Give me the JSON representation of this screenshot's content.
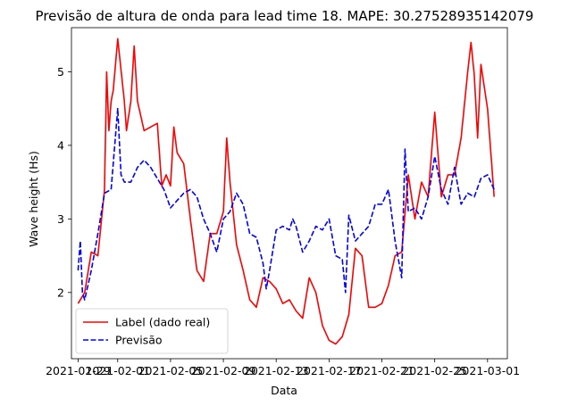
{
  "chart_data": {
    "type": "line",
    "title": "Previsão de altura de onda para lead time 18. MAPE: 30.27528935142079",
    "xlabel": "Data",
    "ylabel": "Wave height (Hs)",
    "xlim": [
      "2021-01-28T12:00",
      "2021-03-02T12:00"
    ],
    "ylim": [
      1.1,
      5.6
    ],
    "x_ticks": [
      "2021-01-29",
      "2021-02-01",
      "2021-02-05",
      "2021-02-09",
      "2021-02-13",
      "2021-02-17",
      "2021-02-21",
      "2021-02-25",
      "2021-03-01"
    ],
    "y_ticks": [
      2,
      3,
      4,
      5
    ],
    "grid": false,
    "legend": "bottom-left",
    "series": [
      {
        "name": "Label (dado real)",
        "color": "#ff0000",
        "style": "solid",
        "points": [
          [
            "2021-01-29T00:00",
            1.85
          ],
          [
            "2021-01-29T12:00",
            2.0
          ],
          [
            "2021-01-30T00:00",
            2.55
          ],
          [
            "2021-01-30T12:00",
            2.5
          ],
          [
            "2021-01-31T00:00",
            3.4
          ],
          [
            "2021-01-31T04:00",
            5.0
          ],
          [
            "2021-01-31T08:00",
            4.2
          ],
          [
            "2021-01-31T12:00",
            4.6
          ],
          [
            "2021-01-31T16:00",
            4.75
          ],
          [
            "2021-02-01T00:00",
            5.45
          ],
          [
            "2021-02-01T12:00",
            4.6
          ],
          [
            "2021-02-01T16:00",
            4.2
          ],
          [
            "2021-02-02T00:00",
            4.6
          ],
          [
            "2021-02-02T06:00",
            5.35
          ],
          [
            "2021-02-02T12:00",
            4.6
          ],
          [
            "2021-02-03T00:00",
            4.2
          ],
          [
            "2021-02-03T12:00",
            4.25
          ],
          [
            "2021-02-04T00:00",
            4.3
          ],
          [
            "2021-02-04T08:00",
            3.45
          ],
          [
            "2021-02-04T16:00",
            3.6
          ],
          [
            "2021-02-05T00:00",
            3.45
          ],
          [
            "2021-02-05T06:00",
            4.25
          ],
          [
            "2021-02-05T12:00",
            3.9
          ],
          [
            "2021-02-06T00:00",
            3.75
          ],
          [
            "2021-02-06T12:00",
            3.0
          ],
          [
            "2021-02-07T00:00",
            2.3
          ],
          [
            "2021-02-07T12:00",
            2.15
          ],
          [
            "2021-02-08T00:00",
            2.8
          ],
          [
            "2021-02-08T12:00",
            2.8
          ],
          [
            "2021-02-09T00:00",
            3.1
          ],
          [
            "2021-02-09T06:00",
            4.1
          ],
          [
            "2021-02-09T12:00",
            3.5
          ],
          [
            "2021-02-10T00:00",
            2.65
          ],
          [
            "2021-02-10T12:00",
            2.3
          ],
          [
            "2021-02-11T00:00",
            1.9
          ],
          [
            "2021-02-11T12:00",
            1.8
          ],
          [
            "2021-02-12T00:00",
            2.2
          ],
          [
            "2021-02-12T12:00",
            2.15
          ],
          [
            "2021-02-13T00:00",
            2.05
          ],
          [
            "2021-02-13T12:00",
            1.85
          ],
          [
            "2021-02-14T00:00",
            1.9
          ],
          [
            "2021-02-14T12:00",
            1.75
          ],
          [
            "2021-02-15T00:00",
            1.65
          ],
          [
            "2021-02-15T12:00",
            2.2
          ],
          [
            "2021-02-16T00:00",
            2.0
          ],
          [
            "2021-02-16T12:00",
            1.55
          ],
          [
            "2021-02-17T00:00",
            1.35
          ],
          [
            "2021-02-17T12:00",
            1.3
          ],
          [
            "2021-02-18T00:00",
            1.4
          ],
          [
            "2021-02-18T12:00",
            1.7
          ],
          [
            "2021-02-19T00:00",
            2.6
          ],
          [
            "2021-02-19T12:00",
            2.5
          ],
          [
            "2021-02-20T00:00",
            1.8
          ],
          [
            "2021-02-20T12:00",
            1.8
          ],
          [
            "2021-02-21T00:00",
            1.85
          ],
          [
            "2021-02-21T12:00",
            2.1
          ],
          [
            "2021-02-22T00:00",
            2.5
          ],
          [
            "2021-02-22T12:00",
            2.55
          ],
          [
            "2021-02-23T00:00",
            3.6
          ],
          [
            "2021-02-23T12:00",
            3.0
          ],
          [
            "2021-02-24T00:00",
            3.5
          ],
          [
            "2021-02-24T12:00",
            3.3
          ],
          [
            "2021-02-25T00:00",
            4.45
          ],
          [
            "2021-02-25T12:00",
            3.3
          ],
          [
            "2021-02-26T00:00",
            3.6
          ],
          [
            "2021-02-26T12:00",
            3.6
          ],
          [
            "2021-02-27T00:00",
            4.1
          ],
          [
            "2021-02-27T12:00",
            5.0
          ],
          [
            "2021-02-27T18:00",
            5.4
          ],
          [
            "2021-02-28T00:00",
            4.95
          ],
          [
            "2021-02-28T06:00",
            4.1
          ],
          [
            "2021-02-28T12:00",
            5.1
          ],
          [
            "2021-03-01T00:00",
            4.5
          ],
          [
            "2021-03-01T12:00",
            3.3
          ]
        ]
      },
      {
        "name": "Previsão",
        "color": "#0000ff",
        "style": "dashed",
        "points": [
          [
            "2021-01-29T00:00",
            2.3
          ],
          [
            "2021-01-29T04:00",
            2.7
          ],
          [
            "2021-01-29T08:00",
            2.0
          ],
          [
            "2021-01-29T12:00",
            1.9
          ],
          [
            "2021-01-30T00:00",
            2.3
          ],
          [
            "2021-01-30T12:00",
            2.8
          ],
          [
            "2021-01-31T00:00",
            3.35
          ],
          [
            "2021-01-31T12:00",
            3.4
          ],
          [
            "2021-02-01T00:00",
            4.5
          ],
          [
            "2021-02-01T06:00",
            3.6
          ],
          [
            "2021-02-01T12:00",
            3.5
          ],
          [
            "2021-02-02T00:00",
            3.5
          ],
          [
            "2021-02-02T12:00",
            3.7
          ],
          [
            "2021-02-03T00:00",
            3.8
          ],
          [
            "2021-02-03T12:00",
            3.7
          ],
          [
            "2021-02-04T00:00",
            3.55
          ],
          [
            "2021-02-04T12:00",
            3.4
          ],
          [
            "2021-02-05T00:00",
            3.15
          ],
          [
            "2021-02-05T12:00",
            3.25
          ],
          [
            "2021-02-06T00:00",
            3.35
          ],
          [
            "2021-02-06T12:00",
            3.4
          ],
          [
            "2021-02-07T00:00",
            3.3
          ],
          [
            "2021-02-07T12:00",
            3.0
          ],
          [
            "2021-02-08T00:00",
            2.8
          ],
          [
            "2021-02-08T12:00",
            2.55
          ],
          [
            "2021-02-09T00:00",
            3.0
          ],
          [
            "2021-02-09T12:00",
            3.1
          ],
          [
            "2021-02-10T00:00",
            3.35
          ],
          [
            "2021-02-10T12:00",
            3.2
          ],
          [
            "2021-02-11T00:00",
            2.8
          ],
          [
            "2021-02-11T12:00",
            2.75
          ],
          [
            "2021-02-12T00:00",
            2.4
          ],
          [
            "2021-02-12T06:00",
            2.05
          ],
          [
            "2021-02-12T12:00",
            2.3
          ],
          [
            "2021-02-13T00:00",
            2.85
          ],
          [
            "2021-02-13T12:00",
            2.9
          ],
          [
            "2021-02-14T00:00",
            2.85
          ],
          [
            "2021-02-14T06:00",
            3.0
          ],
          [
            "2021-02-14T12:00",
            2.9
          ],
          [
            "2021-02-15T00:00",
            2.55
          ],
          [
            "2021-02-15T12:00",
            2.7
          ],
          [
            "2021-02-16T00:00",
            2.9
          ],
          [
            "2021-02-16T12:00",
            2.85
          ],
          [
            "2021-02-17T00:00",
            3.0
          ],
          [
            "2021-02-17T12:00",
            2.5
          ],
          [
            "2021-02-18T00:00",
            2.45
          ],
          [
            "2021-02-18T06:00",
            2.0
          ],
          [
            "2021-02-18T12:00",
            3.05
          ],
          [
            "2021-02-19T00:00",
            2.7
          ],
          [
            "2021-02-19T12:00",
            2.8
          ],
          [
            "2021-02-20T00:00",
            2.9
          ],
          [
            "2021-02-20T12:00",
            3.2
          ],
          [
            "2021-02-21T00:00",
            3.2
          ],
          [
            "2021-02-21T12:00",
            3.4
          ],
          [
            "2021-02-22T00:00",
            2.7
          ],
          [
            "2021-02-22T12:00",
            2.2
          ],
          [
            "2021-02-22T18:00",
            3.95
          ],
          [
            "2021-02-23T00:00",
            3.1
          ],
          [
            "2021-02-23T12:00",
            3.15
          ],
          [
            "2021-02-24T00:00",
            3.0
          ],
          [
            "2021-02-24T12:00",
            3.3
          ],
          [
            "2021-02-25T00:00",
            3.85
          ],
          [
            "2021-02-25T12:00",
            3.4
          ],
          [
            "2021-02-26T00:00",
            3.2
          ],
          [
            "2021-02-26T12:00",
            3.7
          ],
          [
            "2021-02-27T00:00",
            3.2
          ],
          [
            "2021-02-27T12:00",
            3.35
          ],
          [
            "2021-02-28T00:00",
            3.3
          ],
          [
            "2021-02-28T12:00",
            3.55
          ],
          [
            "2021-03-01T00:00",
            3.6
          ],
          [
            "2021-03-01T12:00",
            3.4
          ]
        ]
      }
    ]
  }
}
